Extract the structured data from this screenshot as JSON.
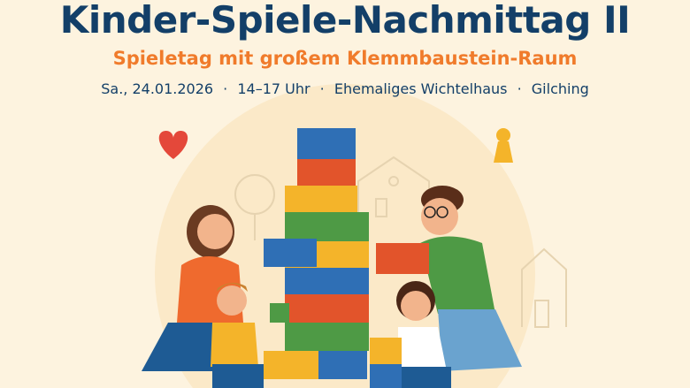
{
  "poster": {
    "title": "Kinder-Spiele-Nachmittag II",
    "subtitle": "Spieletag mit großem Klemmbaustein-Raum",
    "details": {
      "date": "Sa., 24.01.2026",
      "separator": "·",
      "time": "14–17 Uhr",
      "venue": "Ehemaliges Wichtelhaus",
      "town": "Gilching"
    }
  },
  "colors": {
    "background": "#fdf3df",
    "title": "#133f68",
    "accent": "#f07b2b",
    "brick_blue": "#2f6fb5",
    "brick_red": "#e2542b",
    "brick_yellow": "#f4b42a",
    "brick_green": "#4e9a45"
  },
  "icons": [
    "heart-icon",
    "game-pawn-icon",
    "house-outline-icon",
    "tree-outline-icon"
  ]
}
